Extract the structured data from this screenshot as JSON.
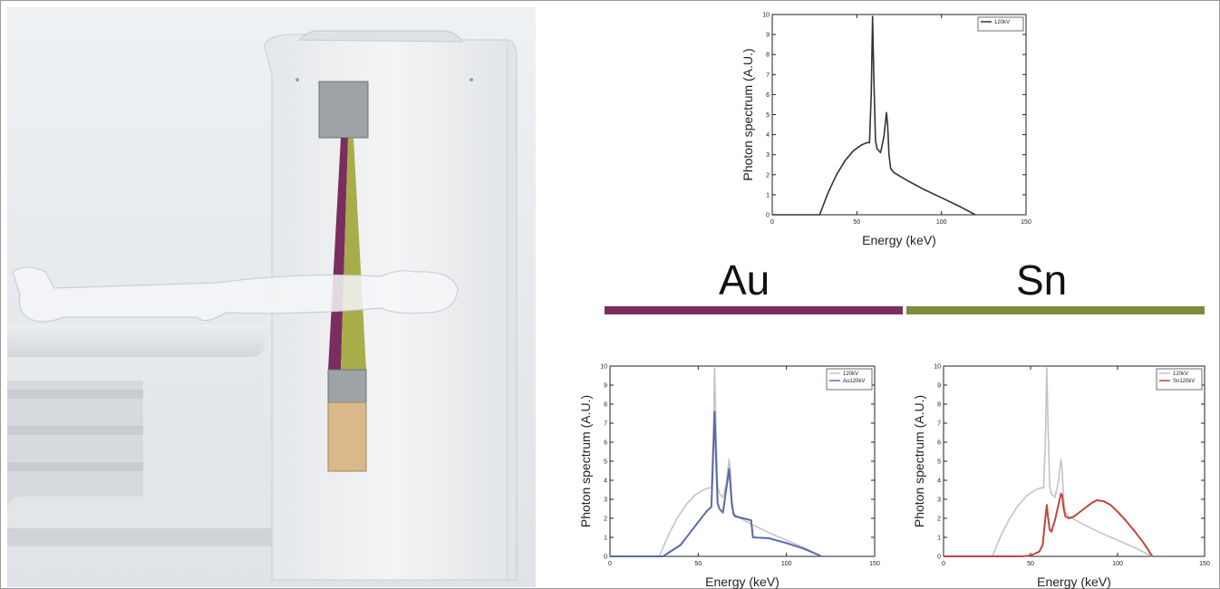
{
  "labels": {
    "left_filter": "Au",
    "right_filter": "Sn"
  },
  "colors": {
    "au": "#7a2e5f",
    "sn": "#7e8a3e",
    "ref": "#c4c4c4",
    "au_line": "#5a6aa8",
    "sn_line": "#c0463e"
  },
  "chart_data": [
    {
      "type": "line",
      "title": "",
      "xlabel": "Energy (keV)",
      "ylabel": "Photon spectrum (A.U.)",
      "xlim": [
        0,
        150
      ],
      "ylim": [
        0,
        10
      ],
      "xticks": [
        0,
        50,
        100,
        150
      ],
      "yticks": [
        0,
        1,
        2,
        3,
        4,
        5,
        6,
        7,
        8,
        9,
        10
      ],
      "legend_position": "top-right",
      "series": [
        {
          "name": "120kV",
          "color": "#333333",
          "x": [
            0,
            28,
            33,
            38,
            43,
            48,
            53,
            56,
            57.5,
            58.5,
            59.3,
            60,
            61,
            62,
            64,
            66,
            67.5,
            68.2,
            69,
            70,
            72,
            80,
            90,
            100,
            110,
            120
          ],
          "y": [
            0,
            0,
            1.1,
            2.0,
            2.7,
            3.2,
            3.5,
            3.6,
            3.6,
            6.0,
            9.9,
            7.0,
            3.7,
            3.3,
            3.1,
            3.9,
            5.1,
            4.5,
            3.0,
            2.3,
            2.1,
            1.7,
            1.25,
            0.85,
            0.45,
            0
          ]
        }
      ]
    },
    {
      "type": "line",
      "title": "",
      "xlabel": "Energy (keV)",
      "ylabel": "Photon spectrum (A.U.)",
      "xlim": [
        0,
        150
      ],
      "ylim": [
        0,
        10
      ],
      "xticks": [
        0,
        50,
        100,
        150
      ],
      "yticks": [
        0,
        1,
        2,
        3,
        4,
        5,
        6,
        7,
        8,
        9,
        10
      ],
      "legend_position": "top-right",
      "series": [
        {
          "name": "120kV",
          "color": "#c4c4c4",
          "x": [
            0,
            28,
            33,
            38,
            43,
            48,
            53,
            56,
            57.5,
            58.5,
            59.3,
            60,
            61,
            62,
            64,
            66,
            67.5,
            68.2,
            69,
            70,
            72,
            80,
            90,
            100,
            110,
            120
          ],
          "y": [
            0,
            0,
            1.1,
            2.0,
            2.7,
            3.2,
            3.5,
            3.6,
            3.6,
            6.0,
            9.9,
            7.0,
            3.7,
            3.3,
            3.1,
            3.9,
            5.1,
            4.5,
            3.0,
            2.3,
            2.1,
            1.7,
            1.25,
            0.85,
            0.45,
            0
          ]
        },
        {
          "name": "Au120kV",
          "color": "#5a6aa8",
          "x": [
            0,
            30,
            40,
            45,
            50,
            55,
            57.5,
            58.5,
            59.3,
            60,
            61,
            62,
            64,
            66,
            67.5,
            68.2,
            69,
            70,
            71,
            80,
            81,
            90,
            100,
            110,
            120
          ],
          "y": [
            0,
            0,
            0.6,
            1.2,
            1.8,
            2.4,
            2.6,
            5.5,
            7.6,
            5.5,
            2.8,
            2.5,
            2.3,
            3.6,
            4.6,
            3.8,
            2.8,
            2.2,
            2.1,
            1.9,
            1.0,
            0.95,
            0.7,
            0.4,
            0
          ]
        }
      ]
    },
    {
      "type": "line",
      "title": "",
      "xlabel": "Energy (keV)",
      "ylabel": "Photon spectrum (A.U.)",
      "xlim": [
        0,
        150
      ],
      "ylim": [
        0,
        10
      ],
      "xticks": [
        0,
        50,
        100,
        150
      ],
      "yticks": [
        0,
        1,
        2,
        3,
        4,
        5,
        6,
        7,
        8,
        9,
        10
      ],
      "legend_position": "top-right",
      "series": [
        {
          "name": "120kV",
          "color": "#c4c4c4",
          "x": [
            0,
            28,
            33,
            38,
            43,
            48,
            53,
            56,
            57.5,
            58.5,
            59.3,
            60,
            61,
            62,
            64,
            66,
            67.5,
            68.2,
            69,
            70,
            72,
            80,
            90,
            100,
            110,
            120
          ],
          "y": [
            0,
            0,
            1.1,
            2.0,
            2.7,
            3.2,
            3.5,
            3.6,
            3.6,
            6.0,
            9.9,
            7.0,
            3.7,
            3.3,
            3.1,
            3.9,
            5.1,
            4.5,
            3.0,
            2.3,
            2.1,
            1.7,
            1.25,
            0.85,
            0.45,
            0
          ]
        },
        {
          "name": "Sn120kV",
          "color": "#c0463e",
          "x": [
            0,
            45,
            50,
            55,
            57,
            58,
            59.3,
            60,
            61,
            62,
            64,
            66,
            67.5,
            68.2,
            69,
            70,
            72,
            75,
            80,
            85,
            88,
            92,
            96,
            100,
            105,
            110,
            115,
            120
          ],
          "y": [
            0,
            0,
            0.05,
            0.25,
            0.6,
            1.6,
            2.7,
            2.1,
            1.4,
            1.3,
            1.9,
            2.7,
            3.3,
            3.2,
            2.5,
            2.1,
            2.0,
            2.1,
            2.45,
            2.8,
            2.95,
            2.9,
            2.7,
            2.35,
            1.85,
            1.3,
            0.7,
            0
          ]
        }
      ]
    }
  ]
}
